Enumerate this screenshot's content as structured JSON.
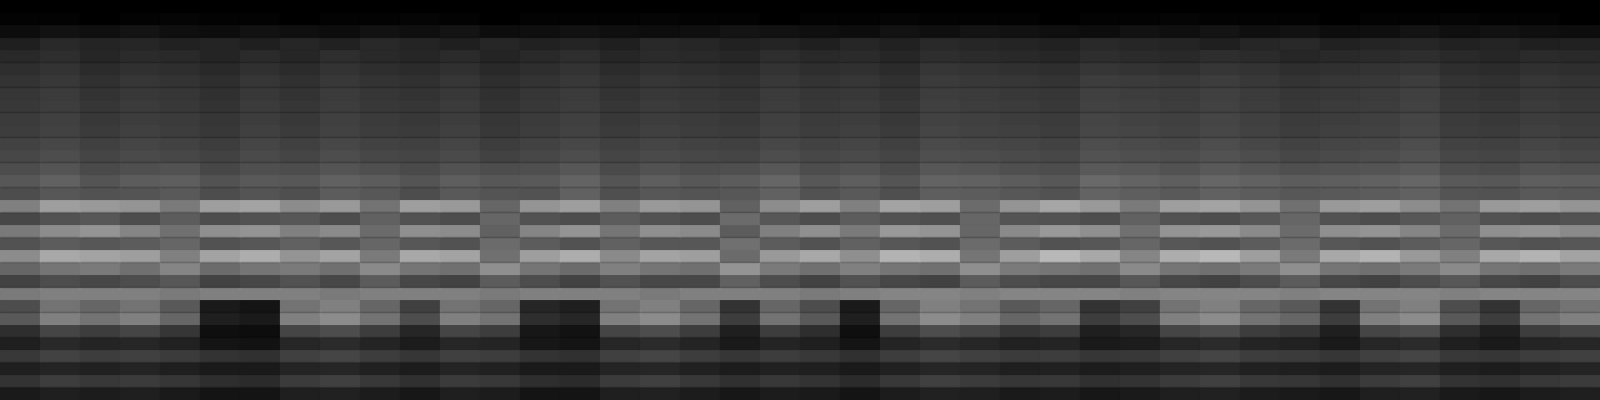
{
  "chart_data": {
    "type": "heatmap",
    "tick_labels": false,
    "zlim": [
      0,
      100
    ],
    "cells": [
      [
        0,
        0,
        0,
        0,
        0,
        0,
        0,
        0,
        0,
        0,
        0,
        0,
        0,
        0,
        0,
        0,
        0,
        0,
        0,
        0,
        0,
        0,
        0,
        0,
        0,
        0,
        0,
        0,
        0,
        0,
        0,
        0,
        0,
        0,
        0,
        0,
        0,
        0,
        0,
        0
      ],
      [
        1,
        1,
        0,
        1,
        2,
        1,
        1,
        0,
        1,
        1,
        2,
        1,
        0,
        1,
        1,
        1,
        2,
        1,
        1,
        0,
        1,
        1,
        2,
        1,
        1,
        1,
        0,
        1,
        1,
        2,
        1,
        1,
        1,
        0,
        1,
        1,
        2,
        1,
        1,
        0
      ],
      [
        5,
        7,
        6,
        8,
        6,
        5,
        7,
        6,
        5,
        7,
        6,
        8,
        5,
        6,
        7,
        6,
        5,
        6,
        8,
        7,
        6,
        5,
        7,
        6,
        8,
        7,
        6,
        5,
        7,
        6,
        8,
        6,
        7,
        5,
        6,
        8,
        6,
        7,
        6,
        5
      ],
      [
        12,
        16,
        14,
        15,
        13,
        14,
        12,
        15,
        13,
        16,
        14,
        12,
        15,
        13,
        14,
        12,
        16,
        15,
        13,
        14,
        12,
        15,
        13,
        16,
        15,
        14,
        13,
        16,
        15,
        14,
        12,
        15,
        16,
        13,
        14,
        15,
        13,
        14,
        12,
        13
      ],
      [
        16,
        18,
        15,
        17,
        16,
        14,
        17,
        15,
        18,
        16,
        15,
        17,
        14,
        16,
        18,
        15,
        17,
        16,
        15,
        18,
        16,
        17,
        15,
        18,
        17,
        16,
        15,
        18,
        17,
        16,
        18,
        17,
        15,
        16,
        17,
        18,
        16,
        15,
        17,
        16
      ],
      [
        18,
        20,
        17,
        19,
        18,
        16,
        19,
        17,
        20,
        18,
        17,
        19,
        16,
        18,
        20,
        17,
        19,
        18,
        17,
        20,
        18,
        19,
        17,
        21,
        20,
        19,
        18,
        21,
        20,
        19,
        21,
        20,
        18,
        19,
        20,
        21,
        18,
        17,
        19,
        18
      ],
      [
        20,
        22,
        19,
        21,
        20,
        18,
        21,
        19,
        22,
        20,
        19,
        21,
        18,
        20,
        22,
        19,
        21,
        20,
        19,
        22,
        20,
        21,
        19,
        23,
        22,
        21,
        20,
        24,
        23,
        22,
        24,
        22,
        20,
        21,
        22,
        24,
        20,
        19,
        21,
        20
      ],
      [
        21,
        23,
        20,
        22,
        21,
        19,
        22,
        20,
        23,
        21,
        20,
        22,
        19,
        21,
        23,
        20,
        22,
        21,
        20,
        23,
        21,
        22,
        20,
        24,
        23,
        22,
        21,
        25,
        24,
        23,
        25,
        23,
        21,
        22,
        23,
        25,
        21,
        20,
        22,
        21
      ],
      [
        22,
        24,
        21,
        23,
        22,
        20,
        23,
        21,
        24,
        22,
        21,
        23,
        20,
        22,
        24,
        21,
        23,
        22,
        21,
        24,
        22,
        23,
        21,
        25,
        24,
        23,
        22,
        26,
        25,
        24,
        26,
        24,
        22,
        23,
        24,
        26,
        22,
        21,
        23,
        22
      ],
      [
        23,
        25,
        22,
        24,
        23,
        21,
        24,
        22,
        25,
        23,
        22,
        24,
        21,
        23,
        25,
        22,
        24,
        23,
        22,
        25,
        23,
        24,
        22,
        26,
        25,
        24,
        23,
        27,
        26,
        25,
        27,
        25,
        23,
        24,
        25,
        27,
        23,
        22,
        24,
        23
      ],
      [
        24,
        26,
        23,
        25,
        24,
        22,
        25,
        23,
        26,
        24,
        23,
        25,
        22,
        24,
        26,
        23,
        25,
        24,
        23,
        26,
        24,
        25,
        23,
        27,
        26,
        25,
        24,
        28,
        27,
        26,
        28,
        26,
        24,
        25,
        26,
        28,
        24,
        23,
        25,
        24
      ],
      [
        26,
        28,
        25,
        27,
        26,
        24,
        27,
        25,
        28,
        26,
        25,
        27,
        24,
        26,
        28,
        25,
        27,
        26,
        25,
        28,
        26,
        27,
        25,
        29,
        28,
        27,
        26,
        30,
        29,
        28,
        30,
        28,
        26,
        27,
        28,
        30,
        26,
        25,
        27,
        26
      ],
      [
        28,
        30,
        27,
        29,
        28,
        26,
        29,
        27,
        30,
        28,
        27,
        29,
        26,
        28,
        30,
        27,
        29,
        28,
        27,
        30,
        28,
        29,
        27,
        31,
        30,
        29,
        28,
        32,
        31,
        30,
        32,
        30,
        28,
        29,
        30,
        32,
        28,
        27,
        29,
        28
      ],
      [
        30,
        33,
        29,
        31,
        32,
        28,
        31,
        30,
        33,
        31,
        29,
        32,
        30,
        31,
        34,
        29,
        32,
        30,
        31,
        34,
        30,
        32,
        29,
        34,
        33,
        31,
        30,
        35,
        34,
        32,
        35,
        33,
        31,
        32,
        33,
        35,
        30,
        29,
        32,
        31
      ],
      [
        34,
        38,
        33,
        36,
        37,
        32,
        35,
        34,
        38,
        36,
        33,
        37,
        34,
        35,
        39,
        33,
        37,
        34,
        36,
        40,
        34,
        37,
        33,
        39,
        38,
        36,
        34,
        41,
        39,
        37,
        40,
        38,
        36,
        37,
        38,
        40,
        35,
        34,
        37,
        36
      ],
      [
        30,
        34,
        32,
        33,
        35,
        30,
        33,
        31,
        36,
        34,
        30,
        35,
        33,
        32,
        38,
        31,
        34,
        33,
        34,
        38,
        32,
        35,
        31,
        37,
        36,
        34,
        32,
        39,
        37,
        35,
        38,
        36,
        34,
        35,
        36,
        38,
        33,
        32,
        35,
        34
      ],
      [
        50,
        62,
        60,
        58,
        48,
        62,
        64,
        55,
        60,
        45,
        62,
        60,
        40,
        58,
        62,
        50,
        60,
        58,
        38,
        55,
        62,
        50,
        64,
        62,
        42,
        58,
        65,
        60,
        48,
        62,
        64,
        58,
        44,
        60,
        62,
        55,
        45,
        60,
        62,
        58
      ],
      [
        28,
        32,
        34,
        30,
        36,
        30,
        32,
        34,
        30,
        38,
        32,
        30,
        40,
        32,
        30,
        36,
        32,
        30,
        42,
        34,
        30,
        36,
        32,
        31,
        40,
        33,
        32,
        30,
        38,
        32,
        30,
        34,
        40,
        32,
        30,
        34,
        38,
        32,
        30,
        32
      ],
      [
        48,
        55,
        58,
        52,
        44,
        56,
        58,
        50,
        54,
        42,
        56,
        55,
        38,
        52,
        58,
        46,
        56,
        54,
        36,
        50,
        56,
        48,
        60,
        58,
        40,
        54,
        60,
        56,
        44,
        58,
        60,
        54,
        42,
        56,
        58,
        52,
        42,
        56,
        58,
        54
      ],
      [
        32,
        36,
        34,
        36,
        40,
        32,
        34,
        38,
        34,
        40,
        34,
        32,
        42,
        36,
        32,
        38,
        34,
        34,
        44,
        36,
        32,
        38,
        34,
        32,
        42,
        36,
        32,
        34,
        40,
        34,
        32,
        36,
        42,
        34,
        32,
        36,
        40,
        34,
        32,
        34
      ],
      [
        55,
        66,
        64,
        62,
        50,
        64,
        68,
        58,
        64,
        48,
        66,
        64,
        44,
        62,
        68,
        54,
        64,
        62,
        42,
        60,
        66,
        56,
        70,
        68,
        46,
        62,
        72,
        66,
        52,
        68,
        72,
        62,
        48,
        66,
        70,
        60,
        50,
        66,
        70,
        64
      ],
      [
        40,
        46,
        48,
        44,
        52,
        42,
        46,
        48,
        44,
        54,
        46,
        44,
        56,
        46,
        42,
        50,
        46,
        44,
        58,
        48,
        44,
        50,
        46,
        44,
        56,
        48,
        46,
        44,
        54,
        46,
        44,
        48,
        56,
        46,
        44,
        48,
        54,
        46,
        44,
        48
      ],
      [
        26,
        30,
        28,
        30,
        34,
        26,
        28,
        32,
        28,
        36,
        28,
        26,
        36,
        30,
        26,
        32,
        28,
        28,
        38,
        30,
        26,
        32,
        28,
        26,
        36,
        30,
        28,
        28,
        34,
        28,
        26,
        30,
        36,
        28,
        26,
        30,
        34,
        28,
        26,
        30
      ],
      [
        48,
        50,
        50,
        50,
        48,
        50,
        50,
        50,
        48,
        50,
        50,
        50,
        48,
        50,
        50,
        50,
        48,
        50,
        50,
        50,
        48,
        50,
        52,
        52,
        50,
        52,
        52,
        52,
        50,
        52,
        52,
        52,
        50,
        52,
        52,
        52,
        50,
        52,
        52,
        52
      ],
      [
        30,
        45,
        40,
        45,
        35,
        10,
        8,
        45,
        50,
        40,
        25,
        45,
        40,
        15,
        12,
        45,
        50,
        40,
        20,
        40,
        30,
        10,
        40,
        50,
        45,
        35,
        40,
        20,
        25,
        45,
        50,
        40,
        35,
        20,
        45,
        50,
        30,
        20,
        40,
        45
      ],
      [
        35,
        50,
        45,
        50,
        40,
        12,
        10,
        50,
        55,
        45,
        30,
        50,
        45,
        18,
        15,
        50,
        55,
        45,
        24,
        45,
        35,
        12,
        45,
        55,
        50,
        40,
        45,
        24,
        30,
        50,
        55,
        45,
        40,
        24,
        50,
        55,
        35,
        24,
        45,
        50
      ],
      [
        18,
        27,
        24,
        27,
        21,
        6,
        5,
        27,
        30,
        24,
        15,
        27,
        24,
        9,
        7,
        27,
        30,
        24,
        12,
        24,
        18,
        6,
        24,
        30,
        27,
        21,
        24,
        12,
        15,
        27,
        30,
        24,
        21,
        12,
        27,
        30,
        18,
        12,
        24,
        27
      ],
      [
        12,
        16,
        14,
        15,
        13,
        8,
        7,
        15,
        17,
        14,
        11,
        15,
        14,
        9,
        8,
        15,
        17,
        14,
        10,
        14,
        12,
        8,
        14,
        17,
        15,
        13,
        14,
        10,
        11,
        15,
        17,
        14,
        13,
        10,
        15,
        17,
        12,
        10,
        14,
        15
      ],
      [
        22,
        26,
        24,
        25,
        23,
        20,
        19,
        25,
        27,
        24,
        21,
        25,
        24,
        20,
        19,
        25,
        27,
        24,
        21,
        24,
        22,
        19,
        24,
        27,
        25,
        23,
        24,
        21,
        22,
        25,
        27,
        24,
        23,
        21,
        25,
        27,
        22,
        21,
        24,
        25
      ],
      [
        12,
        14,
        13,
        14,
        12,
        10,
        10,
        14,
        15,
        13,
        11,
        14,
        13,
        10,
        10,
        14,
        15,
        13,
        11,
        13,
        12,
        10,
        13,
        15,
        14,
        12,
        13,
        11,
        12,
        14,
        15,
        13,
        12,
        11,
        14,
        15,
        12,
        11,
        13,
        14
      ],
      [
        20,
        24,
        22,
        23,
        21,
        18,
        17,
        23,
        25,
        22,
        19,
        23,
        22,
        18,
        17,
        23,
        25,
        22,
        19,
        22,
        20,
        17,
        22,
        25,
        23,
        21,
        22,
        19,
        20,
        23,
        25,
        22,
        21,
        19,
        23,
        25,
        20,
        19,
        22,
        23
      ],
      [
        10,
        12,
        11,
        12,
        10,
        8,
        8,
        12,
        13,
        11,
        9,
        12,
        11,
        8,
        8,
        12,
        13,
        11,
        9,
        11,
        10,
        8,
        11,
        13,
        12,
        10,
        11,
        9,
        10,
        12,
        13,
        11,
        10,
        9,
        12,
        13,
        10,
        9,
        11,
        12
      ]
    ]
  }
}
